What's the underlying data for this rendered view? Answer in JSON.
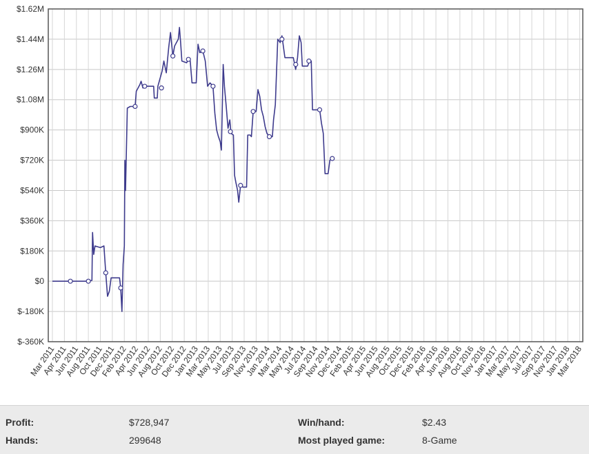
{
  "chart_data": {
    "type": "line",
    "title": "",
    "xlabel": "",
    "ylabel": "",
    "ylim": [
      -360000,
      1620000
    ],
    "yticks": [
      -360000,
      -180000,
      0,
      180000,
      360000,
      540000,
      720000,
      900000,
      1080000,
      1260000,
      1440000,
      1620000
    ],
    "ytick_labels": [
      "$-360K",
      "$-180K",
      "$0",
      "$180K",
      "$360K",
      "$540K",
      "$720K",
      "$900K",
      "$1.08M",
      "$1.26M",
      "$1.44M",
      "$1.62M"
    ],
    "x_labels": [
      "Mar 2011",
      "Apr 2011",
      "Jun 2011",
      "Aug 2011",
      "Oct 2011",
      "Dec 2011",
      "Feb 2012",
      "Apr 2012",
      "Jun 2012",
      "Aug 2012",
      "Oct 2012",
      "Dec 2012",
      "Jan 2013",
      "Mar 2013",
      "May 2013",
      "Jul 2013",
      "Sep 2013",
      "Nov 2013",
      "Jan 2014",
      "Mar 2014",
      "May 2014",
      "Jul 2014",
      "Sep 2014",
      "Nov 2014",
      "Dec 2014",
      "Feb 2015",
      "Apr 2015",
      "Jun 2015",
      "Aug 2015",
      "Oct 2015",
      "Dec 2015",
      "Feb 2016",
      "Apr 2016",
      "Jun 2016",
      "Aug 2016",
      "Oct 2016",
      "Nov 2016",
      "Jan 2017",
      "Mar 2017",
      "May 2017",
      "Jul 2017",
      "Sep 2017",
      "Nov 2017",
      "Jan 2018",
      "Mar 2018"
    ],
    "grid": true,
    "series": [
      {
        "color": "#3d3a8c",
        "points": [
          [
            0,
            0
          ],
          [
            1.5,
            0
          ],
          [
            3.0,
            0
          ],
          [
            3.3,
            5000
          ],
          [
            3.35,
            290000
          ],
          [
            3.45,
            160000
          ],
          [
            3.55,
            210000
          ],
          [
            4.0,
            200000
          ],
          [
            4.3,
            210000
          ],
          [
            4.45,
            50000
          ],
          [
            4.6,
            -90000
          ],
          [
            4.75,
            -60000
          ],
          [
            4.9,
            20000
          ],
          [
            5.6,
            20000
          ],
          [
            5.7,
            -40000
          ],
          [
            5.8,
            -180000
          ],
          [
            5.9,
            100000
          ],
          [
            6.0,
            210000
          ],
          [
            6.05,
            720000
          ],
          [
            6.1,
            540000
          ],
          [
            6.25,
            1030000
          ],
          [
            6.5,
            1040000
          ],
          [
            6.9,
            1040000
          ],
          [
            7.0,
            1130000
          ],
          [
            7.3,
            1170000
          ],
          [
            7.4,
            1190000
          ],
          [
            7.55,
            1150000
          ],
          [
            7.7,
            1160000
          ],
          [
            8.45,
            1160000
          ],
          [
            8.5,
            1090000
          ],
          [
            8.75,
            1090000
          ],
          [
            8.8,
            1160000
          ],
          [
            9.15,
            1250000
          ],
          [
            9.3,
            1310000
          ],
          [
            9.5,
            1240000
          ],
          [
            9.7,
            1390000
          ],
          [
            9.85,
            1480000
          ],
          [
            9.95,
            1410000
          ],
          [
            10.05,
            1340000
          ],
          [
            10.2,
            1400000
          ],
          [
            10.5,
            1440000
          ],
          [
            10.6,
            1510000
          ],
          [
            10.7,
            1420000
          ],
          [
            10.8,
            1310000
          ],
          [
            11.2,
            1300000
          ],
          [
            11.35,
            1320000
          ],
          [
            11.5,
            1310000
          ],
          [
            11.65,
            1180000
          ],
          [
            12.0,
            1180000
          ],
          [
            12.15,
            1410000
          ],
          [
            12.3,
            1360000
          ],
          [
            12.55,
            1370000
          ],
          [
            12.75,
            1310000
          ],
          [
            12.95,
            1160000
          ],
          [
            13.15,
            1180000
          ],
          [
            13.4,
            1160000
          ],
          [
            13.55,
            1000000
          ],
          [
            13.7,
            900000
          ],
          [
            13.85,
            860000
          ],
          [
            14.0,
            830000
          ],
          [
            14.1,
            780000
          ],
          [
            14.25,
            1290000
          ],
          [
            14.35,
            1160000
          ],
          [
            14.5,
            1040000
          ],
          [
            14.65,
            910000
          ],
          [
            14.8,
            960000
          ],
          [
            14.9,
            880000
          ],
          [
            15.1,
            870000
          ],
          [
            15.2,
            630000
          ],
          [
            15.3,
            590000
          ],
          [
            15.45,
            540000
          ],
          [
            15.55,
            470000
          ],
          [
            15.7,
            570000
          ],
          [
            15.9,
            560000
          ],
          [
            16.2,
            560000
          ],
          [
            16.3,
            870000
          ],
          [
            16.5,
            870000
          ],
          [
            16.6,
            860000
          ],
          [
            16.75,
            1010000
          ],
          [
            17.0,
            1010000
          ],
          [
            17.15,
            1140000
          ],
          [
            17.3,
            1100000
          ],
          [
            17.45,
            1020000
          ],
          [
            17.6,
            980000
          ],
          [
            17.75,
            920000
          ],
          [
            17.9,
            880000
          ],
          [
            18.0,
            870000
          ],
          [
            18.1,
            860000
          ],
          [
            18.35,
            860000
          ],
          [
            18.45,
            960000
          ],
          [
            18.6,
            1050000
          ],
          [
            18.8,
            1440000
          ],
          [
            19.0,
            1420000
          ],
          [
            19.15,
            1460000
          ],
          [
            19.4,
            1330000
          ],
          [
            20.1,
            1330000
          ],
          [
            20.3,
            1260000
          ],
          [
            20.45,
            1330000
          ],
          [
            20.6,
            1460000
          ],
          [
            20.75,
            1420000
          ],
          [
            20.85,
            1280000
          ],
          [
            21.3,
            1280000
          ],
          [
            21.45,
            1310000
          ],
          [
            21.6,
            1310000
          ],
          [
            21.7,
            1020000
          ],
          [
            22.3,
            1020000
          ],
          [
            22.45,
            940000
          ],
          [
            22.6,
            880000
          ],
          [
            22.75,
            640000
          ],
          [
            23.0,
            640000
          ],
          [
            23.15,
            720000
          ],
          [
            23.35,
            730000
          ]
        ]
      }
    ],
    "markers": [
      [
        1.5,
        0
      ],
      [
        3.0,
        0
      ],
      [
        4.45,
        50000
      ],
      [
        5.7,
        -40000
      ],
      [
        6.9,
        1040000
      ],
      [
        7.7,
        1160000
      ],
      [
        9.1,
        1150000
      ],
      [
        10.05,
        1340000
      ],
      [
        11.35,
        1320000
      ],
      [
        12.55,
        1370000
      ],
      [
        13.4,
        1160000
      ],
      [
        14.85,
        890000
      ],
      [
        15.7,
        570000
      ],
      [
        16.75,
        1010000
      ],
      [
        18.1,
        860000
      ],
      [
        19.15,
        1440000
      ],
      [
        20.3,
        1290000
      ],
      [
        21.4,
        1310000
      ],
      [
        22.3,
        1020000
      ],
      [
        23.35,
        730000
      ]
    ]
  },
  "stats": {
    "profit_label": "Profit:",
    "profit_value": "$728,947",
    "hands_label": "Hands:",
    "hands_value": "299648",
    "winhand_label": "Win/hand:",
    "winhand_value": "$2.43",
    "game_label": "Most played game:",
    "game_value": "8-Game"
  }
}
